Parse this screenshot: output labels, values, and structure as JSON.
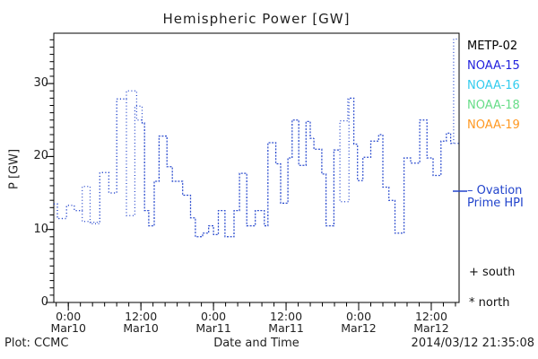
{
  "title": "Hemispheric Power [GW]",
  "footer": {
    "left": "Plot: CCMC",
    "right": "2014/03/12 21:35:08"
  },
  "legend": {
    "satellites": [
      {
        "label": "METP-02",
        "color": "#000000"
      },
      {
        "label": "NOAA-15",
        "color": "#2222dd"
      },
      {
        "label": "NOAA-16",
        "color": "#33ccee"
      },
      {
        "label": "NOAA-18",
        "color": "#66dd88"
      },
      {
        "label": "NOAA-19",
        "color": "#ff9922"
      }
    ],
    "line_entry": {
      "line1": "– Ovation",
      "line2": "Prime HPI",
      "color": "#2244cc"
    },
    "markers": [
      {
        "symbol": "+",
        "label": "south"
      },
      {
        "symbol": "*",
        "label": "north"
      }
    ]
  },
  "chart_data": {
    "type": "line",
    "title": "Hemispheric Power [GW]",
    "xlabel": "Date and Time",
    "ylabel": "P [GW]",
    "x_unit": "hours since 2014-03-10 00:00 UT",
    "xlim": [
      -2.4,
      64.6
    ],
    "ylim": [
      0,
      36.9
    ],
    "grid": false,
    "line_color": "#2244cc",
    "line_style": "dotted-step",
    "x_major_ticks": [
      {
        "t": 0,
        "time": "0:00",
        "date": "Mar10"
      },
      {
        "t": 12,
        "time": "12:00",
        "date": "Mar10"
      },
      {
        "t": 24,
        "time": "0:00",
        "date": "Mar11"
      },
      {
        "t": 36,
        "time": "12:00",
        "date": "Mar11"
      },
      {
        "t": 48,
        "time": "0:00",
        "date": "Mar12"
      },
      {
        "t": 60,
        "time": "12:00",
        "date": "Mar12"
      }
    ],
    "x_minor_step": 2,
    "y_major_ticks": [
      0,
      10,
      20,
      30
    ],
    "y_minor_step": 1,
    "series": [
      {
        "name": "Ovation Prime HPI (north)",
        "points": [
          [
            -2.4,
            13.5
          ],
          [
            -1.8,
            11.5
          ],
          [
            -0.3,
            13.3
          ],
          [
            1.0,
            12.6
          ],
          [
            2.3,
            15.9
          ],
          [
            3.6,
            11.0
          ],
          [
            5.2,
            17.8
          ],
          [
            6.7,
            15.0
          ],
          [
            8.0,
            27.9
          ],
          [
            9.6,
            29.0
          ],
          [
            11.3,
            25.0
          ],
          [
            12.2,
            24.6
          ],
          [
            12.6,
            12.6
          ],
          [
            13.3,
            10.5
          ],
          [
            14.2,
            16.6
          ],
          [
            15.0,
            22.8
          ],
          [
            16.3,
            18.6
          ],
          [
            17.2,
            16.6
          ],
          [
            18.9,
            14.7
          ],
          [
            20.2,
            11.6
          ],
          [
            21.0,
            9.0
          ],
          [
            22.2,
            9.5
          ],
          [
            23.2,
            10.5
          ],
          [
            24.0,
            9.3
          ],
          [
            24.8,
            12.6
          ],
          [
            25.9,
            9.0
          ],
          [
            27.4,
            12.6
          ],
          [
            28.3,
            17.7
          ],
          [
            29.5,
            10.5
          ],
          [
            30.9,
            12.6
          ],
          [
            32.4,
            10.5
          ],
          [
            33.0,
            21.9
          ],
          [
            34.3,
            19.0
          ],
          [
            35.1,
            13.6
          ],
          [
            36.3,
            19.8
          ],
          [
            37.0,
            25.0
          ],
          [
            38.1,
            18.8
          ],
          [
            39.3,
            24.8
          ],
          [
            40.0,
            22.5
          ],
          [
            40.6,
            21.0
          ],
          [
            41.9,
            17.6
          ],
          [
            42.6,
            10.5
          ],
          [
            43.9,
            20.9
          ],
          [
            44.9,
            24.9
          ],
          [
            46.2,
            28.0
          ],
          [
            47.2,
            21.7
          ],
          [
            47.8,
            16.7
          ],
          [
            48.7,
            19.9
          ],
          [
            50.0,
            22.1
          ],
          [
            51.3,
            23.0
          ],
          [
            52.0,
            15.8
          ],
          [
            53.0,
            14.0
          ],
          [
            54.0,
            9.5
          ],
          [
            55.5,
            19.8
          ],
          [
            56.6,
            19.1
          ],
          [
            58.1,
            25.0
          ],
          [
            59.3,
            19.8
          ],
          [
            60.3,
            17.4
          ],
          [
            61.6,
            22.1
          ],
          [
            62.5,
            23.2
          ],
          [
            63.2,
            21.8
          ],
          [
            63.7,
            36.1
          ]
        ]
      },
      {
        "name": "Ovation Prime HPI (south)",
        "points": [
          [
            -2.4,
            13.5
          ],
          [
            -1.8,
            11.5
          ],
          [
            -0.3,
            13.3
          ],
          [
            1.0,
            12.6
          ],
          [
            2.3,
            11.1
          ],
          [
            3.6,
            10.8
          ],
          [
            5.2,
            17.8
          ],
          [
            6.7,
            15.0
          ],
          [
            8.0,
            27.9
          ],
          [
            9.6,
            11.9
          ],
          [
            11.0,
            26.9
          ],
          [
            12.2,
            24.6
          ],
          [
            12.6,
            12.6
          ],
          [
            13.3,
            10.5
          ],
          [
            14.2,
            16.6
          ],
          [
            15.0,
            22.8
          ],
          [
            16.3,
            18.6
          ],
          [
            17.2,
            16.6
          ],
          [
            18.9,
            14.7
          ],
          [
            20.2,
            11.6
          ],
          [
            21.0,
            9.0
          ],
          [
            22.2,
            9.5
          ],
          [
            23.2,
            10.5
          ],
          [
            24.0,
            9.3
          ],
          [
            24.8,
            12.6
          ],
          [
            25.9,
            9.0
          ],
          [
            27.4,
            12.6
          ],
          [
            28.3,
            17.7
          ],
          [
            29.5,
            10.5
          ],
          [
            30.9,
            12.6
          ],
          [
            32.4,
            10.5
          ],
          [
            33.0,
            21.9
          ],
          [
            34.3,
            19.0
          ],
          [
            35.1,
            13.6
          ],
          [
            36.3,
            19.8
          ],
          [
            37.0,
            25.0
          ],
          [
            38.1,
            18.8
          ],
          [
            39.3,
            24.8
          ],
          [
            40.0,
            22.5
          ],
          [
            40.6,
            21.0
          ],
          [
            41.9,
            17.6
          ],
          [
            42.6,
            10.5
          ],
          [
            43.9,
            20.9
          ],
          [
            44.9,
            13.8
          ],
          [
            46.4,
            28.0
          ],
          [
            47.2,
            21.7
          ],
          [
            47.8,
            16.7
          ],
          [
            48.7,
            19.9
          ],
          [
            50.0,
            22.1
          ],
          [
            51.3,
            23.0
          ],
          [
            52.0,
            15.8
          ],
          [
            53.0,
            14.0
          ],
          [
            54.0,
            9.5
          ],
          [
            55.5,
            19.8
          ],
          [
            56.6,
            19.1
          ],
          [
            58.1,
            25.0
          ],
          [
            59.3,
            19.8
          ],
          [
            60.3,
            17.4
          ],
          [
            61.6,
            22.1
          ],
          [
            62.5,
            23.2
          ],
          [
            63.2,
            21.8
          ],
          [
            63.7,
            21.8
          ]
        ]
      }
    ]
  }
}
